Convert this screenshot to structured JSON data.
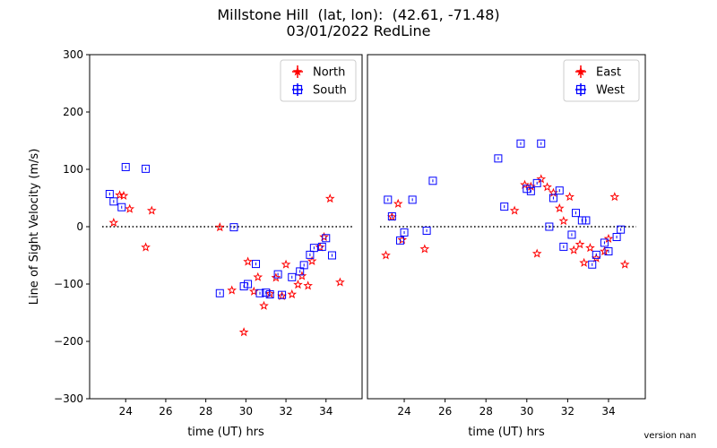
{
  "figure": {
    "title_line1": "Millstone Hill  (lat, lon):  (42.61, -71.48)",
    "title_line2": "03/01/2022 RedLine",
    "version": "version nan"
  },
  "chart_data": [
    {
      "type": "scatter",
      "xlabel": "time (UT) hrs",
      "ylabel": "Line of Sight Velocity (m/s)",
      "xlim": [
        22.2,
        35.8
      ],
      "ylim": [
        -300,
        300
      ],
      "xticks": [
        24,
        26,
        28,
        30,
        32,
        34
      ],
      "yticks": [
        -300,
        -200,
        -100,
        0,
        100,
        200,
        300
      ],
      "zero_line": true,
      "legend_position": "top-right",
      "series": [
        {
          "name": "North",
          "color": "#ff0000",
          "marker": "star",
          "points": [
            [
              23.4,
              7
            ],
            [
              23.7,
              55
            ],
            [
              23.9,
              54
            ],
            [
              24.2,
              31
            ],
            [
              25.0,
              -36
            ],
            [
              25.3,
              28
            ],
            [
              28.7,
              -1
            ],
            [
              29.3,
              -111
            ],
            [
              29.9,
              -184
            ],
            [
              30.1,
              -61
            ],
            [
              30.4,
              -113
            ],
            [
              30.6,
              -88
            ],
            [
              30.9,
              -138
            ],
            [
              31.2,
              -117
            ],
            [
              31.5,
              -89
            ],
            [
              31.8,
              -121
            ],
            [
              32.0,
              -66
            ],
            [
              32.3,
              -118
            ],
            [
              32.6,
              -101
            ],
            [
              32.8,
              -86
            ],
            [
              33.1,
              -103
            ],
            [
              33.3,
              -60
            ],
            [
              33.7,
              -36
            ],
            [
              33.9,
              -18
            ],
            [
              34.2,
              49
            ],
            [
              34.7,
              -97
            ]
          ]
        },
        {
          "name": "South",
          "color": "#0000ff",
          "marker": "square",
          "points": [
            [
              23.2,
              57
            ],
            [
              23.4,
              44
            ],
            [
              23.8,
              34
            ],
            [
              24.0,
              104
            ],
            [
              25.0,
              101
            ],
            [
              28.7,
              -116
            ],
            [
              29.4,
              -1
            ],
            [
              29.9,
              -104
            ],
            [
              30.1,
              -100
            ],
            [
              30.5,
              -65
            ],
            [
              30.7,
              -116
            ],
            [
              31.0,
              -115
            ],
            [
              31.2,
              -118
            ],
            [
              31.6,
              -83
            ],
            [
              31.8,
              -119
            ],
            [
              32.3,
              -88
            ],
            [
              32.7,
              -78
            ],
            [
              32.9,
              -67
            ],
            [
              33.2,
              -49
            ],
            [
              33.4,
              -37
            ],
            [
              33.8,
              -35
            ],
            [
              34.0,
              -20
            ],
            [
              34.3,
              -50
            ]
          ]
        }
      ]
    },
    {
      "type": "scatter",
      "xlabel": "time (UT) hrs",
      "ylabel": "",
      "xlim": [
        22.2,
        35.8
      ],
      "ylim": [
        -300,
        300
      ],
      "xticks": [
        24,
        26,
        28,
        30,
        32,
        34
      ],
      "yticks": [
        -300,
        -200,
        -100,
        0,
        100,
        200,
        300
      ],
      "zero_line": true,
      "legend_position": "top-right",
      "series": [
        {
          "name": "East",
          "color": "#ff0000",
          "marker": "star",
          "points": [
            [
              23.1,
              -50
            ],
            [
              23.4,
              17
            ],
            [
              23.7,
              40
            ],
            [
              23.9,
              -23
            ],
            [
              25.0,
              -39
            ],
            [
              29.4,
              28
            ],
            [
              29.9,
              73
            ],
            [
              30.2,
              70
            ],
            [
              30.5,
              -47
            ],
            [
              30.7,
              83
            ],
            [
              31.0,
              69
            ],
            [
              31.3,
              59
            ],
            [
              31.6,
              32
            ],
            [
              31.8,
              10
            ],
            [
              32.1,
              52
            ],
            [
              32.3,
              -41
            ],
            [
              32.6,
              -31
            ],
            [
              32.8,
              -63
            ],
            [
              33.1,
              -37
            ],
            [
              33.4,
              -55
            ],
            [
              33.8,
              -43
            ],
            [
              34.0,
              -21
            ],
            [
              34.3,
              52
            ],
            [
              34.8,
              -66
            ]
          ]
        },
        {
          "name": "West",
          "color": "#0000ff",
          "marker": "square",
          "points": [
            [
              23.2,
              47
            ],
            [
              23.4,
              18
            ],
            [
              23.8,
              -24
            ],
            [
              24.0,
              -10
            ],
            [
              24.4,
              47
            ],
            [
              25.1,
              -7
            ],
            [
              25.4,
              80
            ],
            [
              28.6,
              119
            ],
            [
              28.9,
              35
            ],
            [
              29.7,
              145
            ],
            [
              30.0,
              66
            ],
            [
              30.2,
              62
            ],
            [
              30.5,
              76
            ],
            [
              30.7,
              145
            ],
            [
              31.1,
              0
            ],
            [
              31.3,
              50
            ],
            [
              31.6,
              63
            ],
            [
              31.8,
              -35
            ],
            [
              32.2,
              -14
            ],
            [
              32.4,
              24
            ],
            [
              32.7,
              11
            ],
            [
              32.9,
              11
            ],
            [
              33.2,
              -66
            ],
            [
              33.4,
              -49
            ],
            [
              33.8,
              -28
            ],
            [
              34.0,
              -43
            ],
            [
              34.4,
              -18
            ],
            [
              34.6,
              -5
            ]
          ]
        }
      ]
    }
  ]
}
